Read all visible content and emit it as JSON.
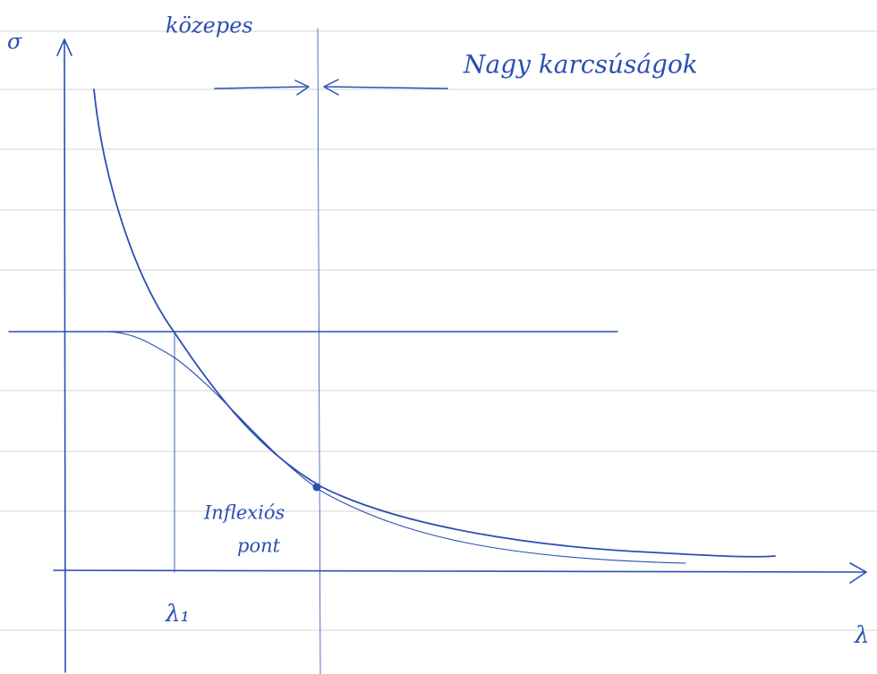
{
  "labels": {
    "y_axis": "σ",
    "x_axis": "λ",
    "lambda1": "λ₁",
    "medium": "közepes",
    "large": "Nagy karcsúságok",
    "inflection": [
      "Inflexiós",
      "pont"
    ]
  }
}
